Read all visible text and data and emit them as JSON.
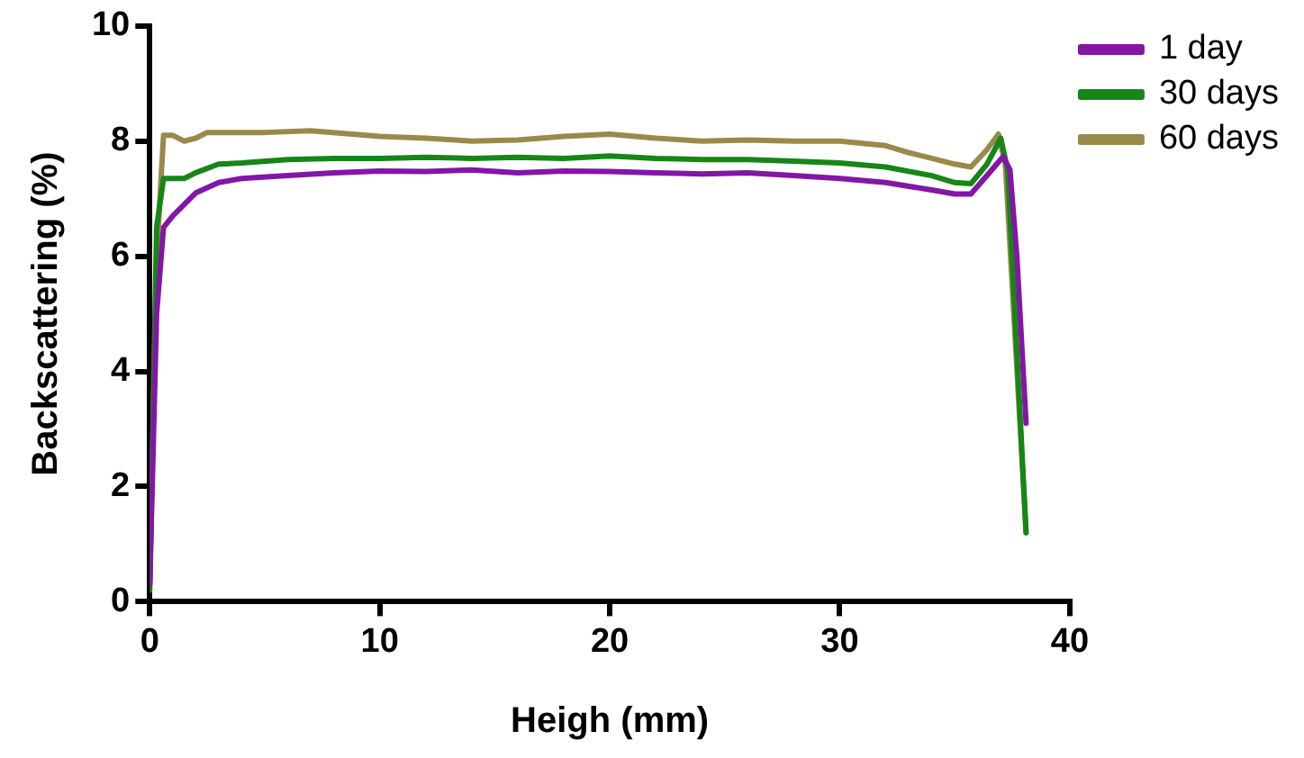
{
  "chart_data": {
    "type": "line",
    "xlabel": "Heigh (mm)",
    "ylabel": "Backscattering (%)",
    "xlim": [
      0,
      40
    ],
    "xticks": [
      0,
      10,
      20,
      30,
      40
    ],
    "ylim": [
      0,
      10
    ],
    "yticks": [
      0,
      2,
      4,
      6,
      8,
      10
    ],
    "grid": false,
    "legend": "right",
    "marker": "none",
    "line_style": "solid",
    "series": [
      {
        "name": "1 day",
        "color": "#8316a6",
        "x": [
          0,
          0.3,
          0.6,
          1,
          1.5,
          2,
          3,
          4,
          6,
          8,
          10,
          12,
          14,
          16,
          18,
          20,
          22,
          24,
          26,
          28,
          30,
          32,
          34,
          35,
          35.7,
          36.4,
          37.1,
          37.4,
          37.7,
          38.1
        ],
        "values": [
          0.3,
          5,
          6.5,
          6.7,
          6.9,
          7.1,
          7.28,
          7.35,
          7.4,
          7.45,
          7.48,
          7.47,
          7.5,
          7.45,
          7.48,
          7.47,
          7.45,
          7.43,
          7.45,
          7.4,
          7.35,
          7.28,
          7.15,
          7.08,
          7.08,
          7.4,
          7.73,
          7.5,
          6,
          3.1
        ]
      },
      {
        "name": "30 days",
        "color": "#168616",
        "x": [
          0,
          0.3,
          0.6,
          1,
          1.5,
          2,
          3,
          4,
          6,
          8,
          10,
          12,
          14,
          16,
          18,
          20,
          22,
          24,
          26,
          28,
          30,
          32,
          34,
          35,
          35.7,
          36.4,
          37,
          37.3,
          38.1
        ],
        "values": [
          0.2,
          6.5,
          7.35,
          7.35,
          7.35,
          7.45,
          7.6,
          7.62,
          7.68,
          7.7,
          7.7,
          7.72,
          7.7,
          7.72,
          7.7,
          7.74,
          7.7,
          7.68,
          7.68,
          7.65,
          7.62,
          7.55,
          7.4,
          7.28,
          7.26,
          7.6,
          8.05,
          7.5,
          1.2
        ]
      },
      {
        "name": "60 days",
        "color": "#9a8a4a",
        "x": [
          0,
          0.3,
          0.6,
          1,
          1.5,
          2,
          2.5,
          3,
          5,
          7,
          10,
          12,
          14,
          16,
          18,
          20,
          22,
          24,
          26,
          28,
          30,
          32,
          33,
          34,
          35,
          35.7,
          36.4,
          36.9,
          37.2,
          38.1
        ],
        "values": [
          0.3,
          6,
          8.1,
          8.1,
          8.0,
          8.05,
          8.15,
          8.15,
          8.15,
          8.18,
          8.08,
          8.05,
          8.0,
          8.02,
          8.08,
          8.12,
          8.05,
          8.0,
          8.02,
          8.0,
          8.0,
          7.92,
          7.8,
          7.7,
          7.6,
          7.55,
          7.85,
          8.12,
          7.6,
          1.2
        ]
      }
    ]
  }
}
